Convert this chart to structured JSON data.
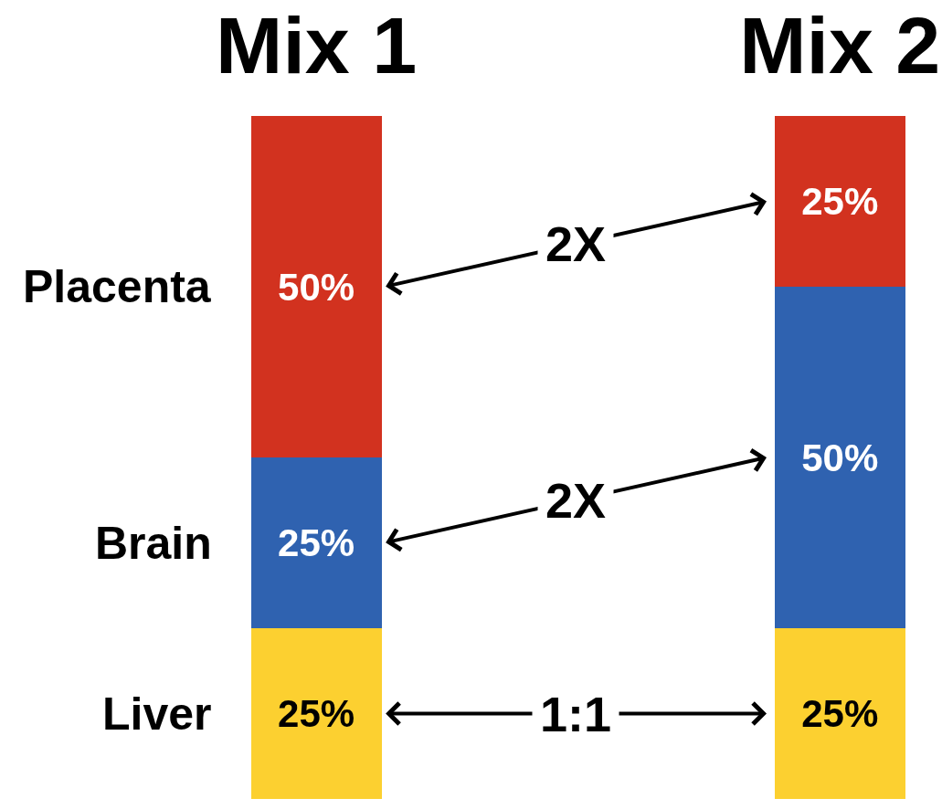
{
  "chart_data": {
    "type": "bar",
    "stacked": true,
    "categories": [
      "Mix 1",
      "Mix 2"
    ],
    "series": [
      {
        "name": "Liver",
        "color": "#fcd030",
        "values": [
          25,
          25
        ],
        "value_labels": [
          "25%",
          "25%"
        ]
      },
      {
        "name": "Brain",
        "color": "#2f62b0",
        "values": [
          25,
          50
        ],
        "value_labels": [
          "25%",
          "50%"
        ]
      },
      {
        "name": "Placenta",
        "color": "#d2321f",
        "values": [
          50,
          25
        ],
        "value_labels": [
          "50%",
          "25%"
        ]
      }
    ],
    "ylim": [
      0,
      100
    ],
    "tick_labels": "x",
    "annotations": [
      "2X",
      "2X",
      "1:1"
    ]
  }
}
